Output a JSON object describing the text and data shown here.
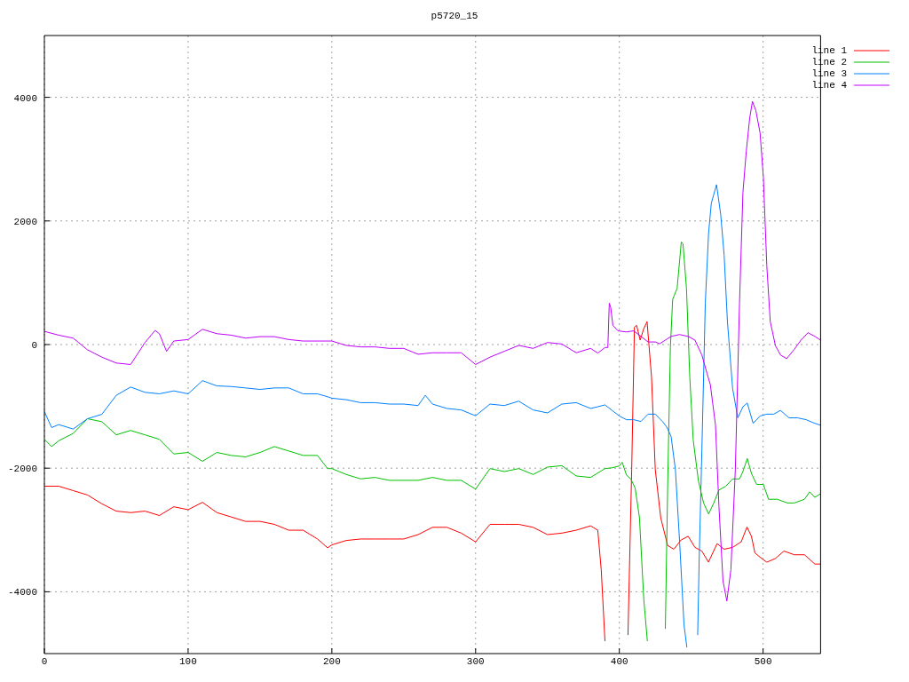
{
  "chart_data": {
    "type": "line",
    "title": "p5720_15",
    "xlim": [
      0,
      540
    ],
    "xticks": [
      0,
      100,
      200,
      300,
      400,
      500
    ],
    "ylim": [
      -5000,
      5000
    ],
    "yticks": [
      -4000,
      -2000,
      0,
      2000,
      4000
    ],
    "grid": true,
    "legend": "top right",
    "line_style": "solid",
    "series": [
      {
        "name": "line 1",
        "color": "#ff0000",
        "x": [
          0,
          10,
          20,
          30,
          40,
          50,
          60,
          70,
          80,
          90,
          100,
          110,
          120,
          130,
          140,
          150,
          160,
          170,
          180,
          190,
          197,
          200,
          210,
          220,
          230,
          240,
          250,
          260,
          270,
          280,
          290,
          300,
          310,
          320,
          330,
          340,
          350,
          360,
          370,
          380,
          385,
          387.4,
          390,
          398,
          406,
          408.6,
          410.5,
          412,
          414.5,
          416.9,
          419.3,
          422.4,
          425,
          428.8,
          433.6,
          437.9,
          443,
          447.9,
          452.6,
          457.4,
          462,
          468,
          472.9,
          478.8,
          484.8,
          488.8,
          491.9,
          494.3,
          499,
          502.6,
          508.6,
          514.5,
          521.7,
          528.8,
          536,
          540
        ],
        "values": [
          -2292,
          -2292,
          -2363,
          -2434,
          -2577,
          -2695,
          -2719,
          -2695,
          -2766,
          -2624,
          -2672,
          -2553,
          -2719,
          -2790,
          -2861,
          -2861,
          -2909,
          -3004,
          -3004,
          -3146,
          -3288,
          -3241,
          -3170,
          -3146,
          -3146,
          -3146,
          -3146,
          -3075,
          -2957,
          -2957,
          -3051,
          -3193,
          -2909,
          -2909,
          -2909,
          -2957,
          -3075,
          -3051,
          -3004,
          -2933,
          -3004,
          -3640,
          -4800,
          null,
          -4700,
          -2024,
          281,
          311,
          72,
          251,
          371,
          -527,
          -2024,
          -2802,
          -3251,
          -3311,
          -3161,
          -3102,
          -3282,
          -3341,
          -3521,
          -3221,
          -3311,
          -3282,
          -3191,
          -2952,
          -3102,
          -3371,
          -3461,
          -3521,
          -3461,
          -3341,
          -3401,
          -3401,
          -3551,
          -3551
        ]
      },
      {
        "name": "line 2",
        "color": "#00c000",
        "x": [
          0,
          5,
          10,
          20,
          30,
          40,
          50,
          60,
          70,
          80,
          90,
          100,
          110,
          120,
          130,
          140,
          150,
          160,
          170,
          180,
          190,
          197,
          200,
          210,
          220,
          230,
          240,
          250,
          260,
          270,
          280,
          290,
          300,
          310,
          320,
          330,
          340,
          350,
          360,
          370,
          380,
          390,
          395,
          400,
          402,
          405,
          408,
          411,
          414,
          417,
          419.5,
          426,
          432,
          433.6,
          435.5,
          437.1,
          440.2,
          443.1,
          444.3,
          446.7,
          449,
          451.4,
          455,
          458.6,
          462.1,
          465.7,
          469.3,
          474,
          478.8,
          483.6,
          486,
          489,
          491.9,
          495.5,
          500.2,
          503.8,
          509.8,
          516.9,
          521.7,
          528.8,
          532.4,
          536,
          540
        ],
        "values": [
          -1533,
          -1651,
          -1556,
          -1438,
          -1200,
          -1248,
          -1461,
          -1390,
          -1461,
          -1533,
          -1770,
          -1746,
          -1889,
          -1746,
          -1794,
          -1817,
          -1746,
          -1651,
          -1722,
          -1794,
          -1794,
          -2007,
          -2007,
          -2102,
          -2173,
          -2150,
          -2197,
          -2197,
          -2197,
          -2150,
          -2197,
          -2197,
          -2339,
          -2007,
          -2055,
          -2007,
          -2102,
          -1983,
          -1960,
          -2126,
          -2150,
          -2007,
          -1994,
          -1964,
          -1904,
          -2114,
          -2174,
          -2323,
          -2802,
          -4120,
          -4800,
          null,
          -4600,
          -2323,
          -48,
          731,
          910,
          1659,
          1629,
          910,
          -527,
          -1545,
          -2204,
          -2563,
          -2742,
          -2563,
          -2353,
          -2293,
          -2174,
          -2174,
          -2054,
          -1844,
          -2084,
          -2263,
          -2263,
          -2503,
          -2503,
          -2563,
          -2563,
          -2503,
          -2383,
          -2473,
          -2413
        ]
      },
      {
        "name": "line 3",
        "color": "#0080ff",
        "x": [
          0,
          5,
          10,
          20,
          30,
          40,
          50,
          60,
          70,
          80,
          90,
          100,
          110,
          120,
          130,
          140,
          150,
          160,
          170,
          180,
          190,
          197,
          200,
          210,
          220,
          230,
          240,
          250,
          260,
          265,
          270,
          280,
          290,
          300,
          310,
          320,
          330,
          340,
          350,
          360,
          370,
          380,
          385,
          390,
          395,
          400,
          405,
          410,
          415,
          420,
          425,
          430,
          433,
          436,
          439,
          442,
          445,
          447,
          451,
          454.5,
          455.5,
          457.4,
          459.8,
          462.1,
          464,
          467.6,
          470.5,
          472.9,
          475.2,
          478.8,
          482.4,
          486,
          489,
          493.1,
          497.9,
          502.6,
          507.4,
          512.1,
          518.1,
          524,
          530,
          536,
          540
        ],
        "values": [
          -1082,
          -1343,
          -1295,
          -1367,
          -1200,
          -1129,
          -821,
          -688,
          -773,
          -797,
          -750,
          -797,
          -584,
          -669,
          -679,
          -702,
          -726,
          -702,
          -702,
          -797,
          -797,
          -845,
          -868,
          -892,
          -940,
          -940,
          -963,
          -963,
          -987,
          -821,
          -963,
          -1034,
          -1058,
          -1153,
          -963,
          -987,
          -916,
          -1058,
          -1106,
          -963,
          -940,
          -1034,
          -1006,
          -976,
          -1066,
          -1156,
          -1216,
          -1216,
          -1245,
          -1126,
          -1126,
          -1245,
          -1335,
          -1485,
          -2024,
          -3221,
          -4538,
          -4900,
          null,
          -4700,
          -3521,
          -1725,
          671,
          1808,
          2287,
          2587,
          2108,
          1449,
          371,
          -707,
          -1186,
          -1006,
          -946,
          -1275,
          -1156,
          -1126,
          -1126,
          -1066,
          -1186,
          -1186,
          -1216,
          -1275,
          -1305
        ]
      },
      {
        "name": "line 4",
        "color": "#c000ff",
        "x": [
          0,
          10,
          20,
          30,
          40,
          50,
          60,
          70,
          77,
          80,
          85,
          90,
          100,
          110,
          120,
          130,
          140,
          150,
          160,
          170,
          180,
          190,
          200,
          210,
          220,
          230,
          240,
          250,
          260,
          270,
          280,
          290,
          300,
          310,
          320,
          330,
          340,
          350,
          360,
          370,
          380,
          385,
          390,
          392,
          393,
          394,
          395.5,
          399,
          405,
          410,
          415,
          420,
          425,
          428,
          432,
          436,
          441.9,
          447.9,
          452.6,
          457.4,
          461,
          463.3,
          466.9,
          469.3,
          472.1,
          474.8,
          477.6,
          480.7,
          483.6,
          486,
          488.3,
          490.7,
          492.6,
          495,
          497.9,
          500.2,
          502.6,
          505,
          508.6,
          512.1,
          516.4,
          521.7,
          526.4,
          531.2,
          536,
          540
        ],
        "values": [
          213,
          152,
          104,
          -85,
          -204,
          -299,
          -323,
          33,
          228,
          176,
          -109,
          57,
          81,
          247,
          176,
          152,
          104,
          128,
          128,
          81,
          57,
          57,
          57,
          -14,
          -38,
          -38,
          -62,
          -62,
          -157,
          -133,
          -133,
          -133,
          -323,
          -204,
          -109,
          -14,
          -62,
          33,
          9,
          -133,
          -62,
          -138,
          -48,
          -48,
          669,
          600,
          311,
          222,
          204,
          222,
          132,
          42,
          42,
          12,
          72,
          132,
          162,
          132,
          72,
          -168,
          -467,
          -647,
          -1305,
          -2623,
          -3821,
          -4150,
          -3641,
          -2024,
          671,
          2467,
          3126,
          3665,
          3934,
          3784,
          3425,
          2707,
          1269,
          371,
          -18,
          -168,
          -228,
          -78,
          72,
          192,
          132,
          72
        ]
      }
    ]
  }
}
